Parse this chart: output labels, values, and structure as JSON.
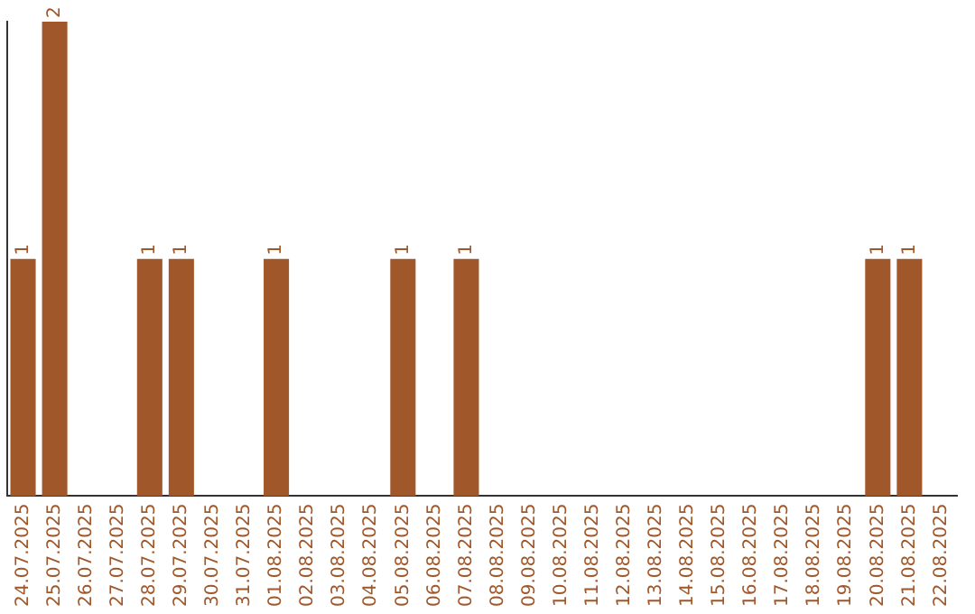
{
  "chart_data": {
    "type": "bar",
    "categories": [
      "24.07.2025",
      "25.07.2025",
      "26.07.2025",
      "27.07.2025",
      "28.07.2025",
      "29.07.2025",
      "30.07.2025",
      "31.07.2025",
      "01.08.2025",
      "02.08.2025",
      "03.08.2025",
      "04.08.2025",
      "05.08.2025",
      "06.08.2025",
      "07.08.2025",
      "08.08.2025",
      "09.08.2025",
      "10.08.2025",
      "11.08.2025",
      "12.08.2025",
      "13.08.2025",
      "14.08.2025",
      "15.08.2025",
      "16.08.2025",
      "17.08.2025",
      "18.08.2025",
      "19.08.2025",
      "20.08.2025",
      "21.08.2025",
      "22.08.2025"
    ],
    "values": [
      1,
      2,
      0,
      0,
      1,
      1,
      0,
      0,
      1,
      0,
      0,
      0,
      1,
      0,
      1,
      0,
      0,
      0,
      0,
      0,
      0,
      0,
      0,
      0,
      0,
      0,
      0,
      1,
      1,
      0
    ],
    "value_labels": [
      "1",
      "2",
      null,
      null,
      "1",
      "1",
      null,
      null,
      "1",
      null,
      null,
      null,
      "1",
      null,
      "1",
      null,
      null,
      null,
      null,
      null,
      null,
      null,
      null,
      null,
      null,
      null,
      null,
      "1",
      "1",
      null
    ],
    "color": "#a0572a",
    "ylim": [
      0,
      2
    ],
    "tick_labels": "x",
    "grid": false,
    "legend": false
  }
}
